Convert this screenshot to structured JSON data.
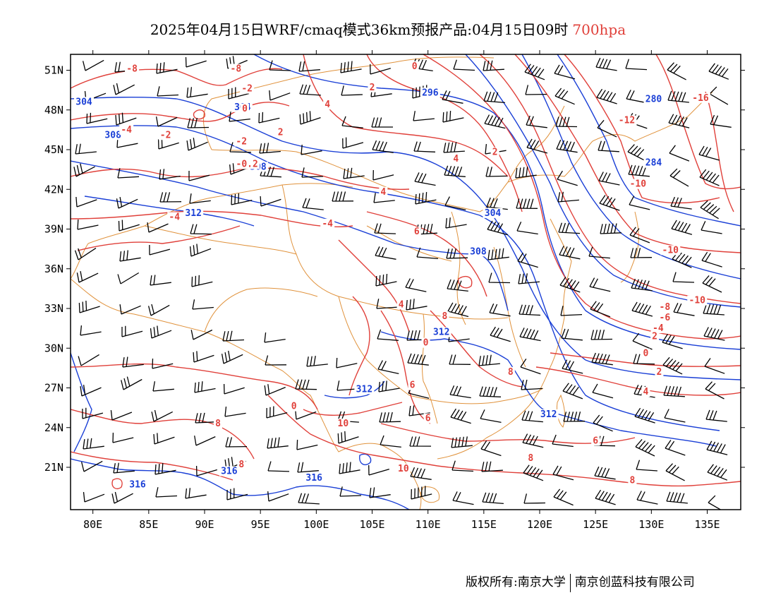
{
  "header": {
    "title_main": "2025年04月15日WRF/cmaq模式36km预报产品:04月15日09时",
    "title_level": "700hpa"
  },
  "axes": {
    "lon_labels": [
      "80E",
      "85E",
      "90E",
      "95E",
      "100E",
      "105E",
      "110E",
      "115E",
      "120E",
      "125E",
      "130E",
      "135E"
    ],
    "lat_labels": [
      "51N",
      "48N",
      "45N",
      "42N",
      "39N",
      "36N",
      "33N",
      "30N",
      "27N",
      "24N",
      "21N"
    ],
    "lon_range": [
      78,
      138
    ],
    "lat_range": [
      17.8,
      52.2
    ]
  },
  "colors": {
    "temperature_contour": "#e0403a",
    "height_contour": "#1a3fd6",
    "boundary": "#e0923c",
    "wind_barb": "#000000",
    "frame": "#000000"
  },
  "height_labels": [
    {
      "text": "304",
      "lon": 79.2,
      "lat": 48.5
    },
    {
      "text": "308",
      "lon": 81.8,
      "lat": 46.0
    },
    {
      "text": "296",
      "lon": 110.2,
      "lat": 49.2
    },
    {
      "text": "280",
      "lon": 130.2,
      "lat": 48.7
    },
    {
      "text": "284",
      "lon": 130.2,
      "lat": 43.9
    },
    {
      "text": "312",
      "lon": 89.0,
      "lat": 40.1
    },
    {
      "text": "304",
      "lon": 115.8,
      "lat": 40.1
    },
    {
      "text": "308",
      "lon": 114.5,
      "lat": 37.2
    },
    {
      "text": "312",
      "lon": 111.2,
      "lat": 31.1
    },
    {
      "text": "312",
      "lon": 104.3,
      "lat": 26.8
    },
    {
      "text": "312",
      "lon": 120.8,
      "lat": 24.9
    },
    {
      "text": "316",
      "lon": 84.0,
      "lat": 19.6
    },
    {
      "text": "316",
      "lon": 92.2,
      "lat": 20.6
    },
    {
      "text": "316",
      "lon": 99.8,
      "lat": 20.1
    },
    {
      "text": "308",
      "lon": 94.8,
      "lat": 43.6
    },
    {
      "text": "304",
      "lon": 93.4,
      "lat": 48.1
    }
  ],
  "temperature_labels": [
    {
      "text": "-8",
      "lon": 83.5,
      "lat": 51.0
    },
    {
      "text": "-8",
      "lon": 92.8,
      "lat": 51.0
    },
    {
      "text": "-2",
      "lon": 93.8,
      "lat": 49.5
    },
    {
      "text": "0",
      "lon": 93.6,
      "lat": 48.0
    },
    {
      "text": "-4",
      "lon": 83.0,
      "lat": 46.4
    },
    {
      "text": "-2",
      "lon": 86.5,
      "lat": 46.0
    },
    {
      "text": "-2",
      "lon": 93.3,
      "lat": 45.5
    },
    {
      "text": "2",
      "lon": 96.8,
      "lat": 46.2
    },
    {
      "text": "4",
      "lon": 101.0,
      "lat": 48.3
    },
    {
      "text": "2",
      "lon": 105.0,
      "lat": 49.6
    },
    {
      "text": "0",
      "lon": 108.8,
      "lat": 51.2
    },
    {
      "text": "-0.2",
      "lon": 93.8,
      "lat": 43.8
    },
    {
      "text": "4",
      "lon": 112.5,
      "lat": 44.2
    },
    {
      "text": "2",
      "lon": 116.0,
      "lat": 44.7
    },
    {
      "text": "-4",
      "lon": 87.3,
      "lat": 39.8
    },
    {
      "text": "-4",
      "lon": 101.0,
      "lat": 39.3
    },
    {
      "text": "4",
      "lon": 106.0,
      "lat": 41.7
    },
    {
      "text": "6",
      "lon": 109.0,
      "lat": 38.7
    },
    {
      "text": "4",
      "lon": 107.6,
      "lat": 33.2
    },
    {
      "text": "8",
      "lon": 111.5,
      "lat": 32.3
    },
    {
      "text": "0",
      "lon": 109.8,
      "lat": 30.3
    },
    {
      "text": "6",
      "lon": 108.6,
      "lat": 27.1
    },
    {
      "text": "6",
      "lon": 110.0,
      "lat": 24.6
    },
    {
      "text": "8",
      "lon": 117.4,
      "lat": 28.1
    },
    {
      "text": "8",
      "lon": 119.2,
      "lat": 21.6
    },
    {
      "text": "8",
      "lon": 91.2,
      "lat": 24.2
    },
    {
      "text": "8",
      "lon": 93.3,
      "lat": 21.1
    },
    {
      "text": "0",
      "lon": 98.0,
      "lat": 25.5
    },
    {
      "text": "10",
      "lon": 102.4,
      "lat": 24.2
    },
    {
      "text": "10",
      "lon": 107.8,
      "lat": 20.8
    },
    {
      "text": "6",
      "lon": 125.0,
      "lat": 22.9
    },
    {
      "text": "8",
      "lon": 128.3,
      "lat": 19.9
    },
    {
      "text": "4",
      "lon": 129.5,
      "lat": 26.6
    },
    {
      "text": "2",
      "lon": 130.7,
      "lat": 28.1
    },
    {
      "text": "0",
      "lon": 129.5,
      "lat": 29.5
    },
    {
      "text": "-4",
      "lon": 130.6,
      "lat": 31.4
    },
    {
      "text": "-6",
      "lon": 131.2,
      "lat": 32.2
    },
    {
      "text": "-8",
      "lon": 131.2,
      "lat": 33.0
    },
    {
      "text": "2",
      "lon": 130.3,
      "lat": 30.8
    },
    {
      "text": "-10",
      "lon": 134.1,
      "lat": 33.5
    },
    {
      "text": "-10",
      "lon": 131.7,
      "lat": 37.3
    },
    {
      "text": "-10",
      "lon": 128.8,
      "lat": 42.3
    },
    {
      "text": "-12",
      "lon": 127.8,
      "lat": 47.1
    },
    {
      "text": "-16",
      "lon": 134.4,
      "lat": 48.8
    }
  ]
}
